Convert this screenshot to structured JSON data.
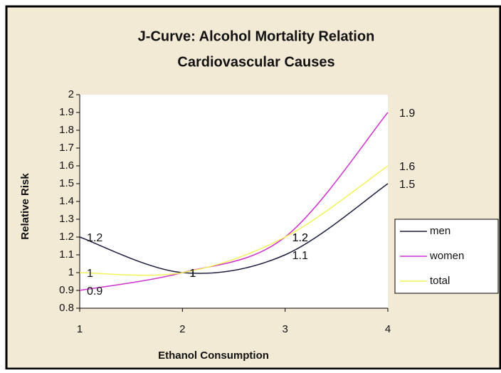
{
  "chart_data": {
    "type": "line",
    "title": [
      "J-Curve: Alcohol Mortality Relation",
      "Cardiovascular Causes"
    ],
    "x_label": "Ethanol Consumption",
    "y_label": "Relative Risk",
    "x": [
      1,
      2,
      3,
      4
    ],
    "series": [
      {
        "name": "men",
        "color": "#1c1c40",
        "values": [
          1.2,
          1,
          1.1,
          1.5
        ]
      },
      {
        "name": "women",
        "color": "#cc33cc",
        "values": [
          0.9,
          1,
          1.2,
          1.9
        ]
      },
      {
        "name": "total",
        "color": "#f2f25a",
        "values": [
          1,
          1,
          1.2,
          1.6
        ]
      }
    ],
    "xlim": [
      1,
      4
    ],
    "xticks": [
      1,
      2,
      3,
      4
    ],
    "ylim": [
      0.8,
      2
    ],
    "yticks": [
      0.8,
      0.9,
      1,
      1.1,
      1.2,
      1.3,
      1.4,
      1.5,
      1.6,
      1.7,
      1.8,
      1.9,
      2
    ],
    "legend": "right",
    "grid": false,
    "data_labels": true
  }
}
